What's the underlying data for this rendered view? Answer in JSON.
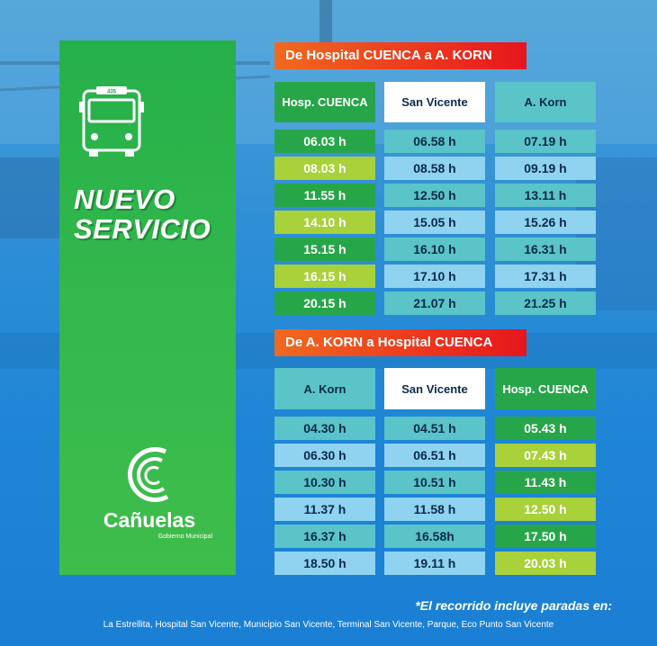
{
  "left": {
    "bus_number": "435",
    "title_line1": "NUEVO",
    "title_line2": "SERVICIO",
    "brand": "Cañuelas",
    "brand_sub": "Gobierno Municipal"
  },
  "colors": {
    "green_dark": "#27a649",
    "green_light": "#a8d13a",
    "teal": "#5ac4c8",
    "light_blue": "#8fd3f0",
    "orange_red": "#ee3a1e"
  },
  "route1": {
    "title": "De Hospital CUENCA a A. KORN",
    "headers": [
      "Hosp. CUENCA",
      "San Vicente",
      "A. Korn"
    ],
    "col1": [
      "06.03 h",
      "08.03 h",
      "11.55 h",
      "14.10 h",
      "15.15 h",
      "16.15 h",
      "20.15 h"
    ],
    "col2": [
      "06.58 h",
      "08.58 h",
      "12.50 h",
      "15.05 h",
      "16.10 h",
      "17.10 h",
      "21.07 h"
    ],
    "col3": [
      "07.19 h",
      "09.19 h",
      "13.11 h",
      "15.26 h",
      "16.31 h",
      "17.31 h",
      "21.25 h"
    ]
  },
  "route2": {
    "title": "De A. KORN a Hospital CUENCA",
    "headers": [
      "A. Korn",
      "San Vicente",
      "Hosp. CUENCA"
    ],
    "col1": [
      "04.30 h",
      "06.30 h",
      "10.30 h",
      "11.37 h",
      "16.37 h",
      "18.50 h"
    ],
    "col2": [
      "04.51 h",
      "06.51 h",
      "10.51 h",
      "11.58 h",
      "16.58h",
      "19.11 h"
    ],
    "col3": [
      "05.43 h",
      "07.43 h",
      "11.43 h",
      "12.50 h",
      "17.50 h",
      "20.03 h"
    ]
  },
  "footer": {
    "note": "*El recorrido incluye paradas en:",
    "stops": "La Estrellita, Hospital San Vicente, Municipio San Vicente, Terminal San Vicente, Parque, Eco Punto San Vicente"
  }
}
